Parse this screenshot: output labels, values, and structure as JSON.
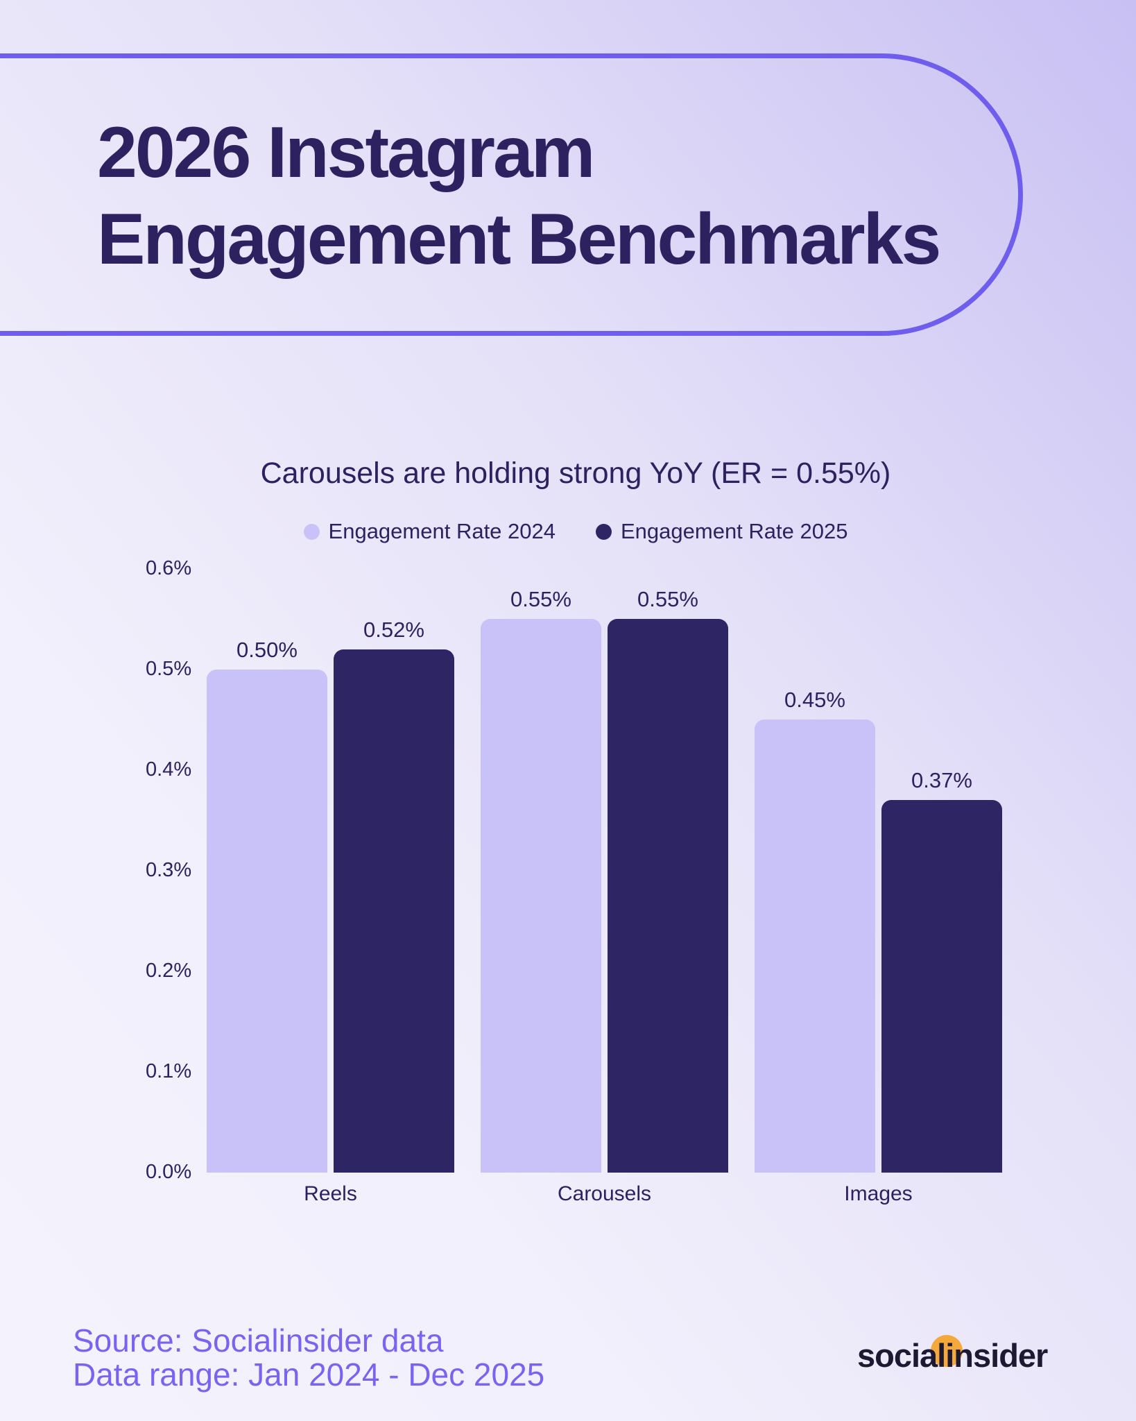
{
  "header": {
    "title_line1": "2026 Instagram",
    "title_line2": "Engagement Benchmarks"
  },
  "chart_data": {
    "type": "bar",
    "title": "Carousels are holding strong YoY (ER = 0.55%)",
    "categories": [
      "Reels",
      "Carousels",
      "Images"
    ],
    "series": [
      {
        "name": "Engagement Rate 2024",
        "color": "#c9c2f8",
        "values": [
          0.5,
          0.55,
          0.45
        ],
        "labels": [
          "0.50%",
          "0.55%",
          "0.45%"
        ]
      },
      {
        "name": "Engagement Rate 2025",
        "color": "#2d2564",
        "values": [
          0.52,
          0.55,
          0.37
        ],
        "labels": [
          "0.52%",
          "0.55%",
          "0.37%"
        ]
      }
    ],
    "ylabel": "",
    "unit": "%",
    "ylim": [
      0,
      0.6
    ],
    "yticks": [
      "0.6%",
      "0.5%",
      "0.4%",
      "0.3%",
      "0.2%",
      "0.1%",
      "0.0%"
    ],
    "grid": false,
    "legend_position": "top"
  },
  "footer": {
    "source_line": "Source: Socialinsider data",
    "range_line": "Data range: Jan 2024 - Dec 2025"
  },
  "logo": {
    "text": "socialinsider"
  },
  "colors": {
    "accent_outline": "#6f5ded",
    "heading_text": "#2e2160",
    "bar_2024": "#c9c2f8",
    "bar_2025": "#2d2564",
    "footer_text": "#7b63f2",
    "logo_text": "#1d1933",
    "logo_dot_orange": "#f5a93d",
    "background_top_right": "#c8c0f3",
    "background_bottom_left": "#f4f2fd"
  }
}
